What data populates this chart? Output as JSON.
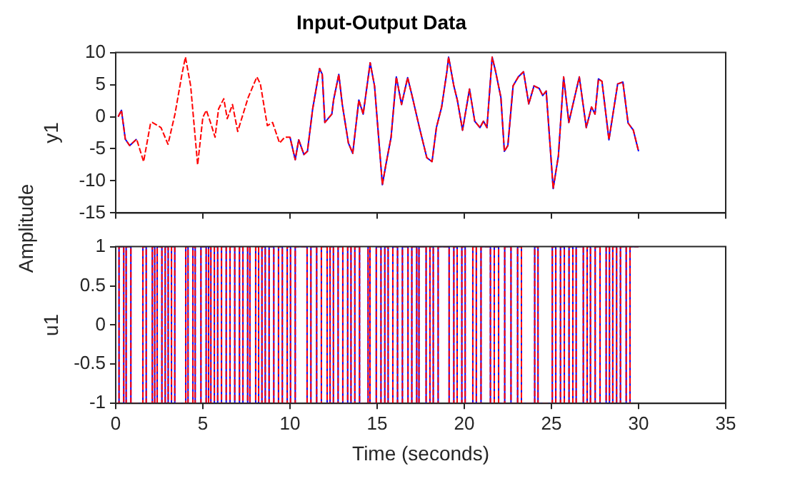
{
  "chart_data": [
    {
      "type": "line",
      "title": "Input-Output Data",
      "ylabel": "y1",
      "annotations": [
        "Amplitude"
      ],
      "tick_labels": "y",
      "xlim": [
        0,
        35
      ],
      "xticks": [
        0,
        5,
        10,
        15,
        20,
        25,
        30,
        35
      ],
      "ylim": [
        -15,
        10
      ],
      "yticks": [
        -15,
        -10,
        -5,
        0,
        5,
        10
      ],
      "legend": false,
      "x": [
        0.14,
        0.33,
        0.55,
        0.8,
        1.2,
        1.6,
        2,
        2.1,
        2.6,
        3,
        3.4,
        3.8,
        4.0,
        4.3,
        4.7,
        5.0,
        5.2,
        5.45,
        5.7,
        5.9,
        6.2,
        6.4,
        6.7,
        7.0,
        7.6,
        8.1,
        8.3,
        8.7,
        9.0,
        9.4,
        9.7,
        10.0,
        10.3,
        10.5,
        10.8,
        11.0,
        11.3,
        11.7,
        11.85,
        12.0,
        12.4,
        12.5,
        12.8,
        13.0,
        13.35,
        13.6,
        13.95,
        14.2,
        14.6,
        14.85,
        15.3,
        15.5,
        15.8,
        16.1,
        16.4,
        16.75,
        17.0,
        17.4,
        17.85,
        18.15,
        18.4,
        18.7,
        19.0,
        19.1,
        19.4,
        19.6,
        19.9,
        20.3,
        20.6,
        20.9,
        21.1,
        21.3,
        21.6,
        21.8,
        22.1,
        22.3,
        22.5,
        22.8,
        23.1,
        23.4,
        23.7,
        24.0,
        24.3,
        24.5,
        24.7,
        25.1,
        25.4,
        25.7,
        26.0,
        26.2,
        26.6,
        27.0,
        27.3,
        27.5,
        27.7,
        27.9,
        28.3,
        28.8,
        29.1,
        29.4,
        29.7,
        30
      ],
      "series": [
        {
          "color": "#0000ff",
          "line_style": "solid",
          "values": [
            0,
            1.0,
            -3.5,
            -4.5,
            -3.5,
            null,
            null,
            null,
            null,
            null,
            null,
            null,
            null,
            null,
            null,
            null,
            null,
            null,
            null,
            null,
            null,
            null,
            null,
            null,
            null,
            null,
            null,
            null,
            null,
            null,
            null,
            -3.2,
            -6.7,
            -3.6,
            -5.9,
            -5.4,
            1.2,
            7.5,
            6.6,
            -0.9,
            0.4,
            2.6,
            6.6,
            1.9,
            -4.1,
            -5.7,
            2.6,
            0.4,
            8.4,
            4.8,
            -10.6,
            -7.5,
            -3.2,
            6.2,
            1.9,
            6.1,
            3.3,
            -1.4,
            -6.4,
            -7,
            -1.7,
            1.5,
            7,
            9.3,
            4.8,
            2.6,
            -2.1,
            4.3,
            -0.7,
            -1.7,
            -0.7,
            -1.7,
            9.3,
            7,
            3,
            -5.4,
            -4.5,
            4.8,
            6.2,
            7,
            2,
            4.8,
            4.4,
            3.3,
            4,
            -11.2,
            -6.1,
            6.2,
            -0.9,
            1.5,
            6.2,
            -1.7,
            1.5,
            0.4,
            5.9,
            5.5,
            -3.6,
            5.1,
            5.4,
            -1,
            -2.1,
            -5.4
          ]
        },
        {
          "color": "#ff0000",
          "line_style": "dashed",
          "values": [
            0,
            1.0,
            -3.5,
            -4.5,
            -3.5,
            -7,
            -1,
            -0.9,
            -1.7,
            -4.3,
            0.4,
            6.6,
            9.3,
            4.8,
            -7.5,
            -0.1,
            1,
            -1,
            -3.2,
            1.2,
            2.8,
            -0.3,
            1.9,
            -2.3,
            3,
            6.2,
            5.1,
            -1.4,
            -0.9,
            -4.1,
            -3.2,
            -3.2,
            -6.7,
            -3.6,
            -5.9,
            -5.4,
            1.2,
            7.5,
            6.6,
            -0.9,
            0.4,
            2.6,
            6.6,
            1.9,
            -4.1,
            -5.7,
            2.6,
            0.4,
            8.4,
            4.8,
            -10.6,
            -7.5,
            -3.2,
            6.2,
            1.9,
            6.1,
            3.3,
            -1.4,
            -6.4,
            -7,
            -1.7,
            1.5,
            7,
            9.3,
            4.8,
            2.6,
            -2.1,
            4.3,
            -0.7,
            -1.7,
            -0.7,
            -1.7,
            9.3,
            7,
            3,
            -5.4,
            -4.5,
            4.8,
            6.2,
            7,
            2,
            4.8,
            4.4,
            3.3,
            4,
            -11.2,
            -6.1,
            6.2,
            -0.9,
            1.5,
            6.2,
            -1.7,
            1.5,
            0.4,
            5.9,
            5.5,
            -3.6,
            5.1,
            5.4,
            -1,
            -2.1,
            -5.4
          ]
        }
      ]
    },
    {
      "type": "step",
      "ylabel": "u1",
      "xlabel": "Time (seconds)",
      "xlim": [
        0,
        35
      ],
      "xticks": [
        0,
        5,
        10,
        15,
        20,
        25,
        30,
        35
      ],
      "ylim": [
        -1,
        1
      ],
      "yticks": [
        -1,
        -0.5,
        0,
        0.5,
        1
      ],
      "legend": false,
      "x": [
        0,
        0.19,
        0.46,
        0.6,
        0.87,
        1.56,
        1.75,
        2.1,
        2.24,
        2.38,
        2.65,
        2.84,
        3.01,
        3.2,
        3.39,
        4.02,
        4.15,
        4.43,
        4.56,
        4.89,
        5.19,
        5.33,
        5.46,
        5.66,
        5.85,
        6.07,
        6.34,
        6.56,
        6.83,
        7.1,
        7.3,
        7.57,
        7.7,
        8.03,
        8.2,
        8.39,
        8.58,
        8.8,
        9.07,
        9.34,
        9.56,
        9.84,
        10.03,
        10.3,
        10.98,
        11.2,
        11.53,
        11.8,
        12.13,
        12.3,
        12.49,
        12.76,
        13.03,
        13.31,
        13.5,
        13.72,
        13.99,
        14.48,
        14.59,
        14.95,
        15.22,
        15.44,
        15.63,
        15.9,
        16.17,
        16.45,
        16.77,
        16.99,
        17.27,
        17.4,
        17.81,
        18.03,
        18.22,
        18.5,
        19.13,
        19.4,
        19.59,
        19.86,
        20.05,
        20.49,
        20.69,
        20.96,
        21.5,
        21.72,
        21.97,
        22.32,
        22.68,
        23.06,
        23.28,
        24.04,
        24.23,
        25.05,
        25.25,
        25.52,
        25.74,
        26.01,
        26.23,
        26.42,
        26.83,
        27.05,
        27.24,
        27.51,
        27.79,
        28.14,
        28.33,
        28.52,
        28.74,
        28.96,
        29.29,
        29.51,
        29.78,
        30
      ],
      "series": [
        {
          "color": "#0000ff",
          "line_style": "solid",
          "values": [
            1,
            -1,
            1,
            -1,
            1,
            -1,
            1,
            -1,
            1,
            -1,
            1,
            -1,
            1,
            -1,
            1,
            -1,
            1,
            -1,
            1,
            -1,
            1,
            -1,
            1,
            -1,
            1,
            -1,
            1,
            -1,
            1,
            -1,
            1,
            -1,
            1,
            -1,
            1,
            -1,
            1,
            -1,
            1,
            -1,
            1,
            -1,
            1,
            -1,
            1,
            -1,
            1,
            -1,
            1,
            -1,
            1,
            -1,
            1,
            -1,
            1,
            -1,
            1,
            -1,
            1,
            -1,
            1,
            -1,
            1,
            -1,
            1,
            -1,
            1,
            -1,
            1,
            -1,
            1,
            -1,
            1,
            -1,
            1,
            -1,
            1,
            -1,
            1,
            -1,
            1,
            -1,
            1,
            -1,
            1,
            -1,
            1,
            -1,
            1,
            -1,
            1,
            -1,
            1,
            -1,
            1,
            -1,
            1,
            -1,
            1,
            -1,
            1,
            -1,
            1,
            -1,
            1,
            -1,
            1,
            -1,
            1,
            -1,
            1,
            1
          ]
        },
        {
          "color": "#ff0000",
          "line_style": "dashed",
          "values": [
            1,
            -1,
            1,
            -1,
            1,
            -1,
            1,
            -1,
            1,
            -1,
            1,
            -1,
            1,
            -1,
            1,
            -1,
            1,
            -1,
            1,
            -1,
            1,
            -1,
            1,
            -1,
            1,
            -1,
            1,
            -1,
            1,
            -1,
            1,
            -1,
            1,
            -1,
            1,
            -1,
            1,
            -1,
            1,
            -1,
            1,
            -1,
            1,
            -1,
            1,
            -1,
            1,
            -1,
            1,
            -1,
            1,
            -1,
            1,
            -1,
            1,
            -1,
            1,
            -1,
            1,
            -1,
            1,
            -1,
            1,
            -1,
            1,
            -1,
            1,
            -1,
            1,
            -1,
            1,
            -1,
            1,
            -1,
            1,
            -1,
            1,
            -1,
            1,
            -1,
            1,
            -1,
            1,
            -1,
            1,
            -1,
            1,
            -1,
            1,
            -1,
            1,
            -1,
            1,
            -1,
            1,
            -1,
            1,
            -1,
            1,
            -1,
            1,
            -1,
            1,
            -1,
            1,
            -1,
            1,
            -1,
            1,
            -1,
            1,
            1
          ]
        }
      ]
    }
  ]
}
